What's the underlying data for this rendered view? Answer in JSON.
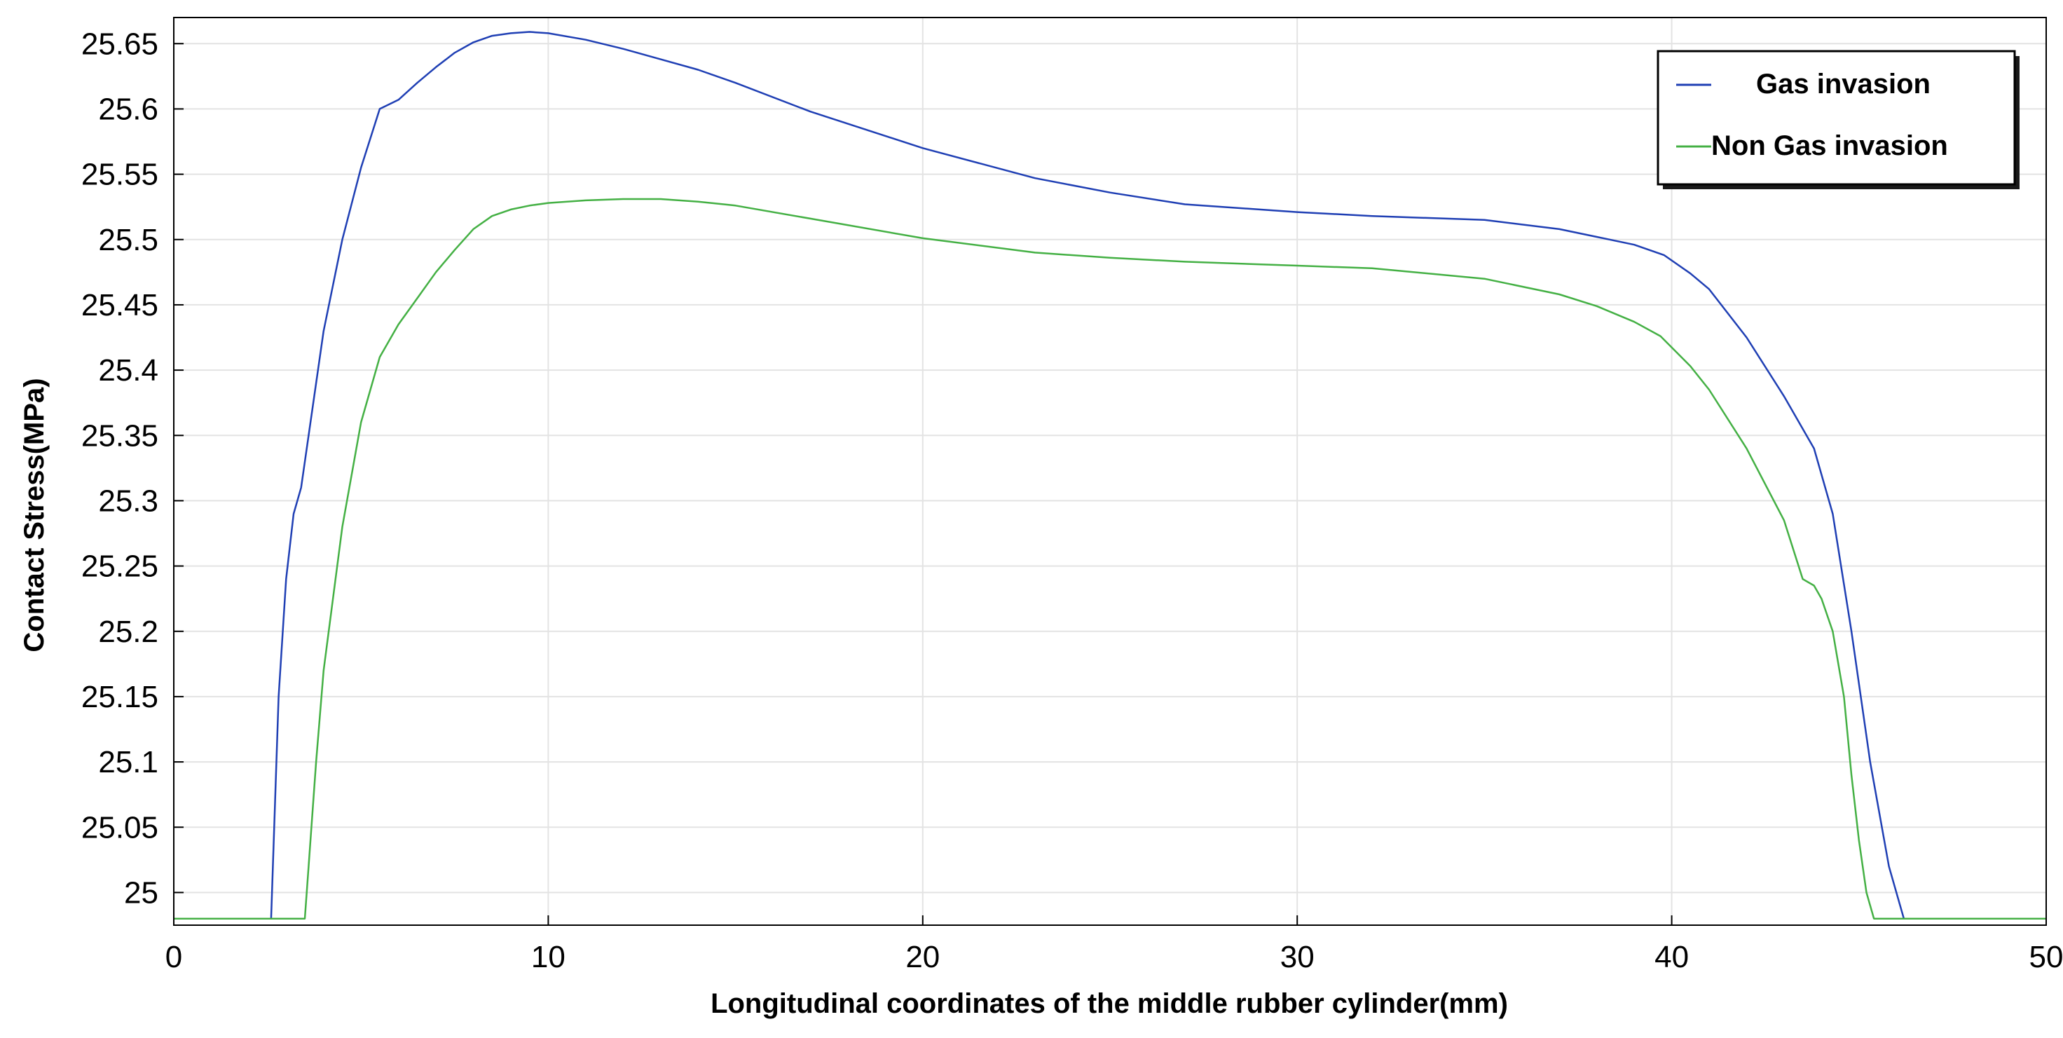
{
  "chart_data": {
    "type": "line",
    "title": "",
    "xlabel": "Longitudinal coordinates of the middle rubber cylinder(mm)",
    "ylabel": "Contact Stress(MPa)",
    "xlim": [
      0,
      50
    ],
    "ylim": [
      24.975,
      25.67
    ],
    "xticks": [
      0,
      10,
      20,
      30,
      40,
      50
    ],
    "xtick_labels": [
      "0",
      "10",
      "20",
      "30",
      "40",
      "50"
    ],
    "yticks": [
      25.0,
      25.05,
      25.1,
      25.15,
      25.2,
      25.25,
      25.3,
      25.35,
      25.4,
      25.45,
      25.5,
      25.55,
      25.6,
      25.65
    ],
    "ytick_labels": [
      "25",
      "25.05",
      "25.1",
      "25.15",
      "25.2",
      "25.25",
      "25.3",
      "25.35",
      "25.4",
      "25.45",
      "25.5",
      "25.55",
      "25.6",
      "25.65"
    ],
    "grid": true,
    "legend_position": "top-right",
    "series": [
      {
        "name": "Gas invasion",
        "color": "#1f3fb4",
        "x": [
          0,
          2.6,
          2.8,
          3.0,
          3.2,
          3.4,
          3.6,
          3.8,
          4.0,
          4.5,
          5.0,
          5.5,
          6.0,
          6.5,
          7.0,
          7.5,
          8.0,
          8.5,
          9.0,
          9.5,
          10.0,
          11.0,
          12.0,
          13.0,
          14.0,
          15.0,
          17.0,
          20.0,
          23.0,
          25.0,
          27.0,
          30.0,
          32.0,
          35.0,
          37.0,
          38.0,
          39.0,
          39.8,
          40.5,
          41.0,
          42.0,
          43.0,
          43.8,
          44.3,
          44.8,
          45.3,
          45.8,
          46.2,
          47.0,
          50.0
        ],
        "y": [
          24.98,
          24.98,
          25.15,
          25.24,
          25.29,
          25.31,
          25.35,
          25.39,
          25.43,
          25.5,
          25.555,
          25.6,
          25.607,
          25.62,
          25.632,
          25.643,
          25.651,
          25.656,
          25.658,
          25.659,
          25.658,
          25.653,
          25.646,
          25.638,
          25.63,
          25.62,
          25.598,
          25.57,
          25.547,
          25.536,
          25.527,
          25.521,
          25.518,
          25.515,
          25.508,
          25.502,
          25.496,
          25.488,
          25.474,
          25.462,
          25.425,
          25.38,
          25.34,
          25.29,
          25.2,
          25.1,
          25.02,
          24.98,
          24.98,
          24.98
        ]
      },
      {
        "name": "Non Gas invasion",
        "color": "#44b044",
        "x": [
          0,
          3.5,
          3.6,
          3.8,
          4.0,
          4.5,
          5.0,
          5.5,
          6.0,
          6.5,
          7.0,
          7.5,
          8.0,
          8.5,
          9.0,
          9.5,
          10.0,
          11.0,
          12.0,
          13.0,
          14.0,
          15.0,
          17.0,
          20.0,
          23.0,
          25.0,
          27.0,
          30.0,
          32.0,
          35.0,
          37.0,
          38.0,
          39.0,
          39.7,
          40.5,
          41.0,
          42.0,
          43.0,
          43.5,
          43.8,
          44.0,
          44.3,
          44.6,
          44.8,
          45.0,
          45.2,
          45.4,
          46.0,
          50.0
        ],
        "y": [
          24.98,
          24.98,
          25.02,
          25.1,
          25.17,
          25.28,
          25.36,
          25.41,
          25.435,
          25.455,
          25.475,
          25.492,
          25.508,
          25.518,
          25.523,
          25.526,
          25.528,
          25.53,
          25.531,
          25.531,
          25.529,
          25.526,
          25.516,
          25.501,
          25.49,
          25.486,
          25.483,
          25.48,
          25.478,
          25.47,
          25.458,
          25.449,
          25.437,
          25.426,
          25.403,
          25.385,
          25.34,
          25.285,
          25.24,
          25.235,
          25.225,
          25.2,
          25.15,
          25.09,
          25.04,
          25.0,
          24.98,
          24.98,
          24.98
        ]
      }
    ]
  }
}
